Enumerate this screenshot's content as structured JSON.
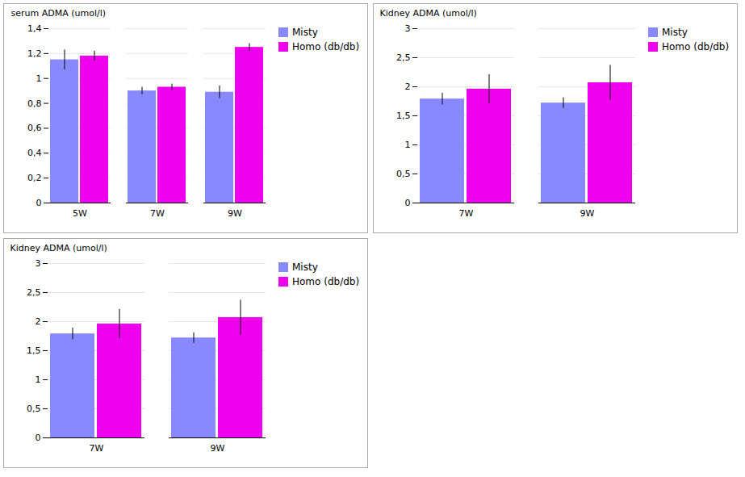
{
  "chart_data": [
    {
      "type": "bar",
      "categories": [
        "5W",
        "7W",
        "9W"
      ],
      "series": [
        {
          "name": "Misty",
          "color": "#8888FF",
          "values": [
            1.15,
            0.9,
            0.89
          ],
          "errors": [
            0.08,
            0.03,
            0.05
          ]
        },
        {
          "name": "Homo (db/db)",
          "color": "#EE00EE",
          "values": [
            1.18,
            0.93,
            1.25
          ],
          "errors": [
            0.04,
            0.025,
            0.03
          ]
        }
      ],
      "ylabel": "serum ADMA (umol/l)",
      "ylim": [
        0,
        1.4
      ],
      "yticks": [
        0,
        {
          "value": 0.2,
          "label": "0,2"
        },
        {
          "value": 0.4,
          "label": "0,4"
        },
        {
          "value": 0.6,
          "label": "0,6"
        },
        {
          "value": 0.8,
          "label": "0,8"
        },
        1,
        {
          "value": 1.2,
          "label": "1,2"
        },
        {
          "value": 1.4,
          "label": "1,4"
        }
      ],
      "grid": true,
      "legend": "right"
    },
    {
      "type": "bar",
      "categories": [
        "7W",
        "9W"
      ],
      "series": [
        {
          "name": "Misty",
          "color": "#8888FF",
          "values": [
            1.79,
            1.72
          ],
          "errors": [
            0.1,
            0.09
          ]
        },
        {
          "name": "Homo (db/db)",
          "color": "#EE00EE",
          "values": [
            1.96,
            2.07
          ],
          "errors": [
            0.25,
            0.3
          ]
        }
      ],
      "ylabel": "Kidney ADMA (umol/l)",
      "ylim": [
        0,
        3.0
      ],
      "yticks": [
        0,
        {
          "value": 0.5,
          "label": "0,5"
        },
        1,
        {
          "value": 1.5,
          "label": "1,5"
        },
        2,
        {
          "value": 2.5,
          "label": "2,5"
        },
        3
      ],
      "grid": true,
      "legend": "right"
    },
    {
      "type": "bar",
      "categories": [
        "7W",
        "9W"
      ],
      "series": [
        {
          "name": "Misty",
          "color": "#8888FF",
          "values": [
            1.79,
            1.72
          ],
          "errors": [
            0.1,
            0.09
          ]
        },
        {
          "name": "Homo (db/db)",
          "color": "#EE00EE",
          "values": [
            1.96,
            2.07
          ],
          "errors": [
            0.25,
            0.3
          ]
        }
      ],
      "ylabel": "Kidney ADMA (umol/l)",
      "ylim": [
        0,
        3.0
      ],
      "yticks": [
        0,
        {
          "value": 0.5,
          "label": "0,5"
        },
        1,
        {
          "value": 1.5,
          "label": "1,5"
        },
        2,
        {
          "value": 2.5,
          "label": "2,5"
        },
        3
      ],
      "grid": true,
      "legend": "right"
    }
  ]
}
